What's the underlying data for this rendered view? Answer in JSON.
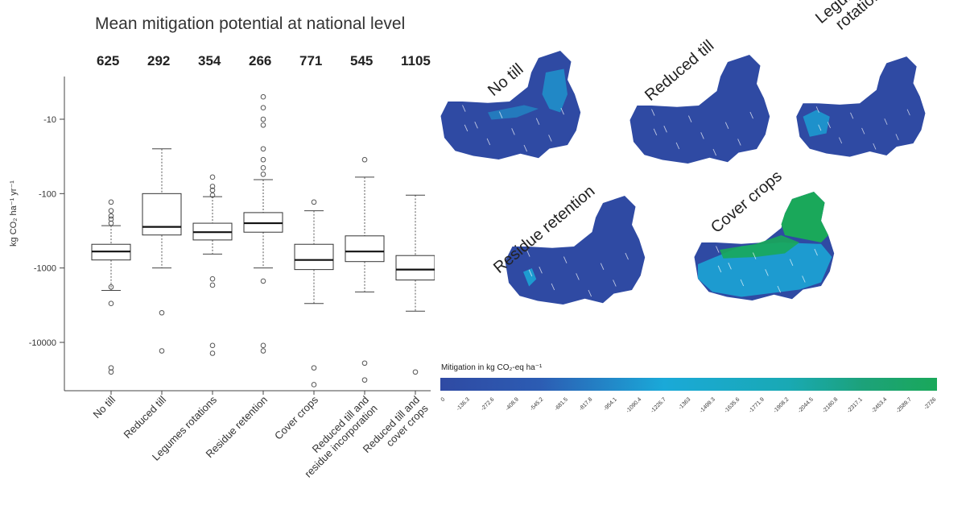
{
  "chart_data": [
    {
      "type": "box",
      "title": "Mean mitigation potential at national level",
      "ylabel": "kg CO₂ ha⁻¹ yr⁻¹",
      "y_scale": "log (negative values, magnitude)",
      "y_ticks": [
        "-10",
        "-100",
        "-1000",
        "-10000"
      ],
      "categories": [
        "No till",
        "Reduced till",
        "Legumes rotations",
        "Residue retention",
        "Cover crops",
        "Reduced till and residue incorporation",
        "Reduced till and cover crops"
      ],
      "category_lines": [
        [
          "No till"
        ],
        [
          "Reduced till"
        ],
        [
          "Legumes rotations"
        ],
        [
          "Residue retention"
        ],
        [
          "Cover crops"
        ],
        [
          "Reduced till and",
          "residue incorporation"
        ],
        [
          "Reduced till and",
          "cover crops"
        ]
      ],
      "means": [
        "625",
        "292",
        "354",
        "266",
        "771",
        "545",
        "1105"
      ],
      "boxes": [
        {
          "name": "No till",
          "whisker_low": -2000,
          "q1": -780,
          "median": -600,
          "q3": -480,
          "whisker_high": -270,
          "outliers": [
            -130,
            -170,
            -200,
            -220,
            -250,
            -3000,
            -1800,
            -22000,
            -25000
          ]
        },
        {
          "name": "Reduced till",
          "whisker_low": -1000,
          "q1": -360,
          "median": -280,
          "q3": -100,
          "whisker_high": -25,
          "outliers": [
            -4000,
            -13000
          ]
        },
        {
          "name": "Legumes rotations",
          "whisker_low": -650,
          "q1": -420,
          "median": -330,
          "q3": -250,
          "whisker_high": -110,
          "outliers": [
            -60,
            -80,
            -90,
            -105,
            -1400,
            -1700,
            -11000,
            -14000
          ]
        },
        {
          "name": "Residue retention",
          "whisker_low": -1000,
          "q1": -330,
          "median": -250,
          "q3": -180,
          "whisker_high": -65,
          "outliers": [
            -5,
            -7,
            -10,
            -12,
            -25,
            -35,
            -45,
            -55,
            -1500,
            -11000,
            -13000
          ]
        },
        {
          "name": "Cover crops",
          "whisker_low": -3000,
          "q1": -1050,
          "median": -780,
          "q3": -480,
          "whisker_high": -170,
          "outliers": [
            -130,
            -22000,
            -37000
          ]
        },
        {
          "name": "Reduced till and residue incorporation",
          "whisker_low": -2100,
          "q1": -820,
          "median": -600,
          "q3": -370,
          "whisker_high": -60,
          "outliers": [
            -35,
            -19000,
            -32000
          ]
        },
        {
          "name": "Reduced till and cover crops",
          "whisker_low": -3800,
          "q1": -1450,
          "median": -1050,
          "q3": -680,
          "whisker_high": -105,
          "outliers": [
            -25000
          ]
        }
      ]
    },
    {
      "type": "heatmap",
      "maps": [
        {
          "label": "No till"
        },
        {
          "label": "Reduced till"
        },
        {
          "label": "Legume rotations",
          "label_lines": [
            "Legume",
            "rotations"
          ]
        },
        {
          "label": "Residue retention"
        },
        {
          "label": "Cover crops"
        }
      ],
      "colorbar": {
        "title": "Mitigation in kg CO₂-eq ha⁻¹",
        "tick_labels": [
          "0",
          "-136.3",
          "-272.6",
          "-408.9",
          "-545.2",
          "-681.5",
          "-817.8",
          "-954.1",
          "-1090.4",
          "-1226.7",
          "-1363",
          "-1499.3",
          "-1635.6",
          "-1771.9",
          "-1908.2",
          "-2044.5",
          "-2180.8",
          "-2317.1",
          "-2453.4",
          "-2589.7",
          "-2726"
        ],
        "colors": [
          "#2f4aa3",
          "#2c5cb3",
          "#1f86cc",
          "#1aa9d8",
          "#19a9b4",
          "#1ca27a",
          "#1aa85a"
        ]
      }
    }
  ],
  "colors": {
    "map_base": "#2f4aa3",
    "map_light": "#1aa9d8",
    "map_green": "#1aa85a"
  }
}
